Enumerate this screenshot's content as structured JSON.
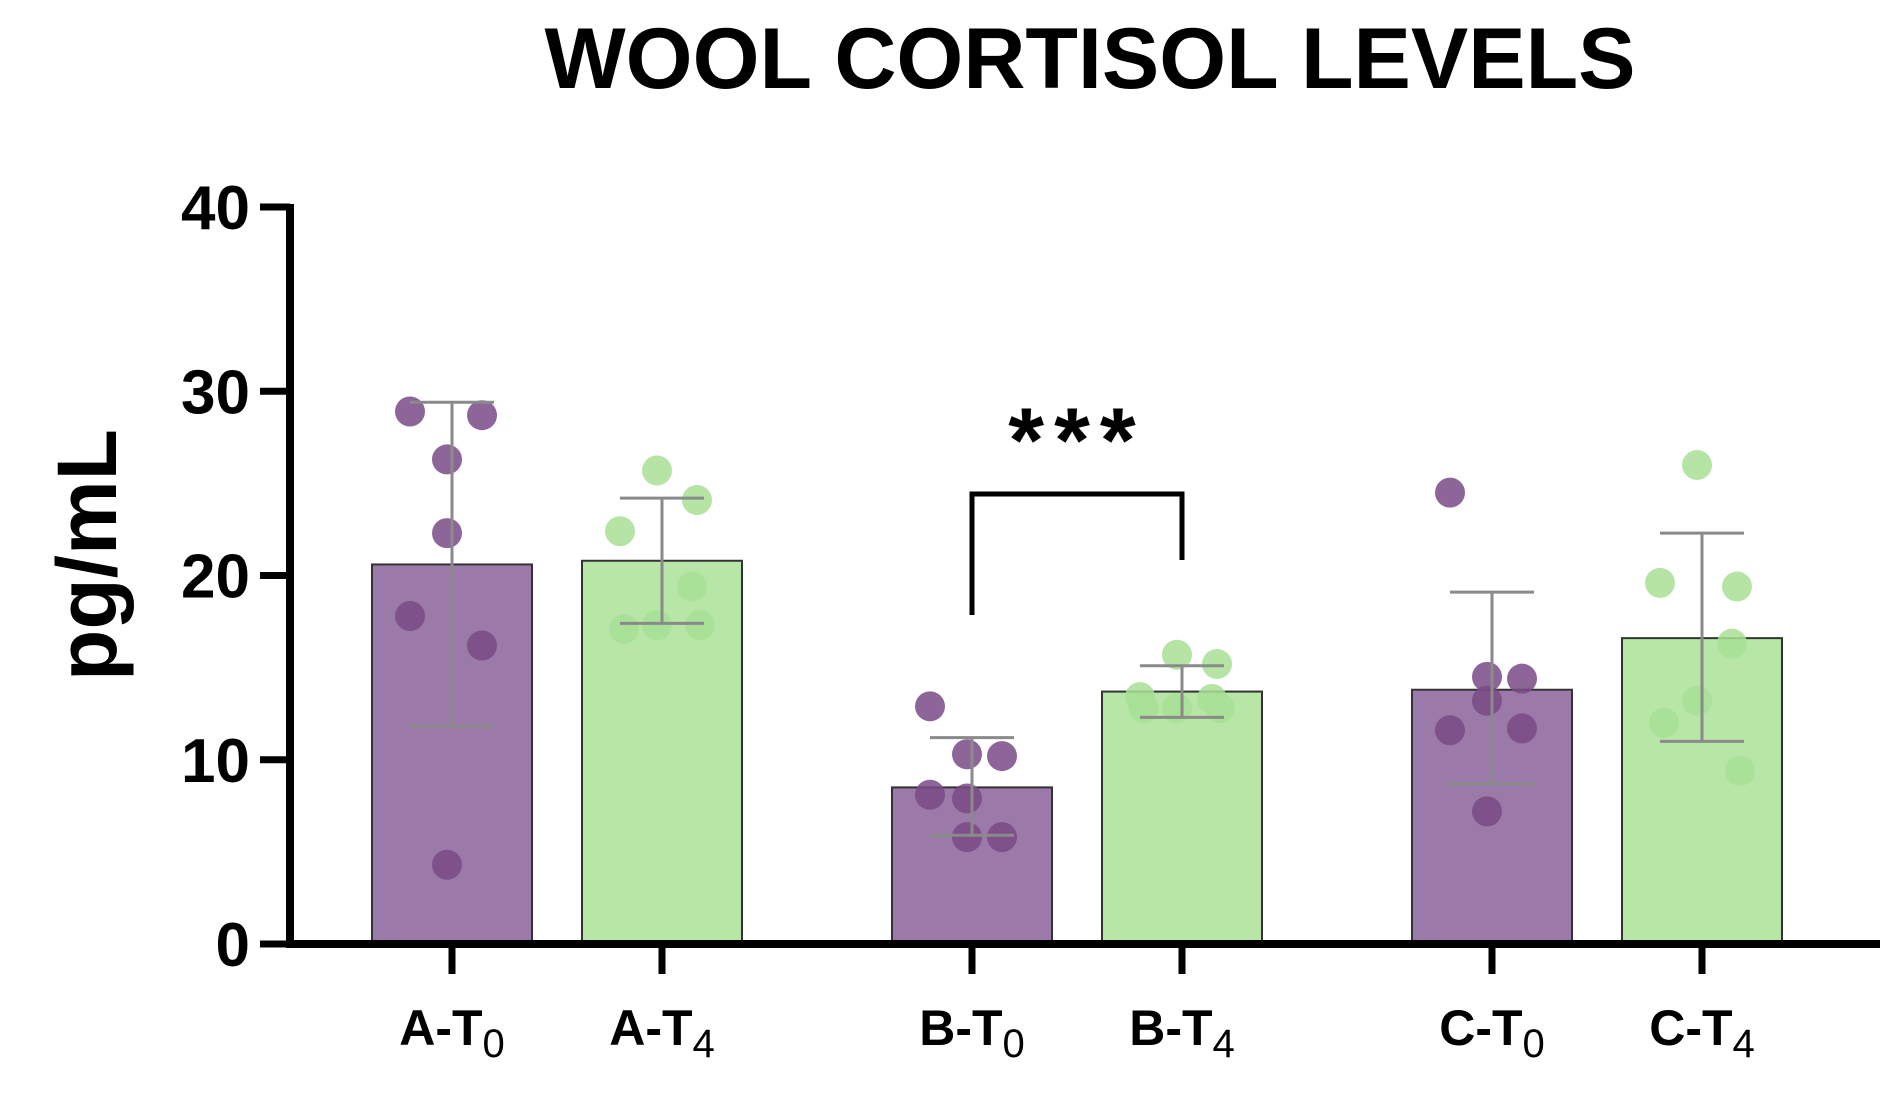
{
  "chart_data": {
    "type": "bar",
    "title": "WOOL CORTISOL LEVELS",
    "ylabel": "pg/mL",
    "xlabel": "",
    "ylim": [
      0,
      40
    ],
    "yticks": [
      "0",
      "10",
      "20",
      "30",
      "40"
    ],
    "grid": false,
    "legend": "none",
    "categories": [
      {
        "main": "A-T",
        "sub": "0"
      },
      {
        "main": "A-T",
        "sub": "4"
      },
      {
        "main": "B-T",
        "sub": "0"
      },
      {
        "main": "B-T",
        "sub": "4"
      },
      {
        "main": "C-T",
        "sub": "0"
      },
      {
        "main": "C-T",
        "sub": "4"
      }
    ],
    "bars": [
      {
        "mean": 20.6,
        "err_low": 11.8,
        "err_high": 29.4,
        "color": "#9b79a8",
        "points": [
          28.9,
          28.7,
          26.3,
          22.3,
          17.8,
          16.2,
          4.3
        ]
      },
      {
        "mean": 20.8,
        "err_low": 17.4,
        "err_high": 24.2,
        "color": "#b7e6a6",
        "points": [
          25.7,
          24.1,
          22.4,
          19.4,
          17.3,
          17.1,
          17.3
        ]
      },
      {
        "mean": 8.5,
        "err_low": 5.9,
        "err_high": 11.2,
        "color": "#9b79a8",
        "points": [
          12.9,
          10.2,
          10.3,
          7.9,
          8.1,
          5.8,
          5.8
        ]
      },
      {
        "mean": 13.7,
        "err_low": 12.3,
        "err_high": 15.1,
        "color": "#b7e6a6",
        "points": [
          15.7,
          15.2,
          13.4,
          13.3,
          12.8,
          12.8,
          12.8
        ]
      },
      {
        "mean": 13.8,
        "err_low": 8.7,
        "err_high": 19.1,
        "color": "#9b79a8",
        "points": [
          24.5,
          14.4,
          14.5,
          13.2,
          11.6,
          11.7,
          7.2
        ]
      },
      {
        "mean": 16.6,
        "err_low": 11.0,
        "err_high": 22.3,
        "color": "#b7e6a6",
        "points": [
          26.0,
          19.4,
          19.6,
          16.3,
          13.2,
          12.0,
          9.4
        ]
      }
    ],
    "significance": {
      "label": "***",
      "from": 2,
      "to": 3
    },
    "colors": {
      "purple_bar": "#9b79a8",
      "purple_point": "#7a4a86",
      "green_bar": "#b7e6a6",
      "green_point": "#a8df95",
      "axis": "#000000",
      "error_bar": "#8a8a8a"
    }
  }
}
